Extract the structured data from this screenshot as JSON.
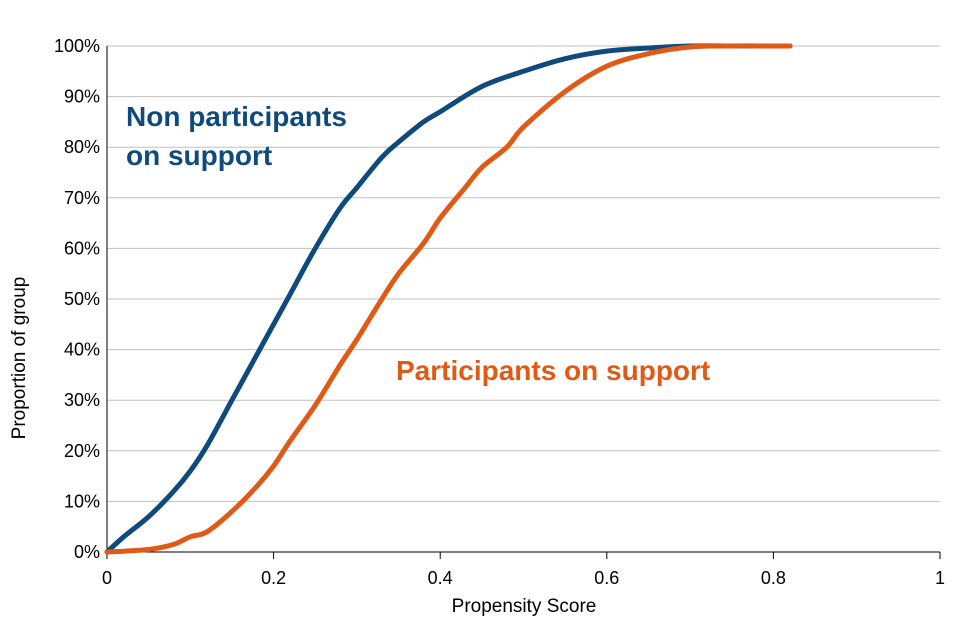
{
  "chart_data": {
    "type": "line",
    "title": "",
    "xlabel": "Propensity Score",
    "ylabel": "Proportion of group",
    "xlim": [
      0,
      1
    ],
    "ylim": [
      0,
      100
    ],
    "x_ticks": [
      0,
      0.2,
      0.4,
      0.6,
      0.8,
      1
    ],
    "x_tick_labels": [
      "0",
      "0.2",
      "0.4",
      "0.6",
      "0.8",
      "1"
    ],
    "y_ticks": [
      0,
      10,
      20,
      30,
      40,
      50,
      60,
      70,
      80,
      90,
      100
    ],
    "y_tick_labels": [
      "0%",
      "10%",
      "20%",
      "30%",
      "40%",
      "50%",
      "60%",
      "70%",
      "80%",
      "90%",
      "100%"
    ],
    "grid": "horizontal",
    "legend": "none",
    "series": [
      {
        "name": "Non participants on support",
        "label_lines": [
          "Non participants",
          "on support"
        ],
        "color": "#0e4a7c",
        "x": [
          0,
          0.02,
          0.05,
          0.08,
          0.1,
          0.12,
          0.15,
          0.18,
          0.2,
          0.22,
          0.25,
          0.28,
          0.3,
          0.33,
          0.35,
          0.38,
          0.4,
          0.45,
          0.5,
          0.55,
          0.6,
          0.65,
          0.7,
          0.75,
          0.8,
          0.82
        ],
        "values": [
          0,
          3,
          7,
          12,
          16,
          21,
          30,
          39,
          45,
          51,
          60,
          68,
          72,
          78,
          81,
          85,
          87,
          92,
          95,
          97.5,
          99,
          99.6,
          100,
          100,
          100,
          100
        ]
      },
      {
        "name": "Participants on support",
        "label_lines": [
          "Participants on support"
        ],
        "color": "#e05a16",
        "x": [
          0,
          0.05,
          0.08,
          0.1,
          0.12,
          0.15,
          0.18,
          0.2,
          0.22,
          0.25,
          0.28,
          0.3,
          0.33,
          0.35,
          0.38,
          0.4,
          0.43,
          0.45,
          0.48,
          0.5,
          0.55,
          0.6,
          0.65,
          0.7,
          0.75,
          0.8,
          0.82
        ],
        "values": [
          0,
          0.5,
          1.5,
          3,
          4,
          8,
          13,
          17,
          22,
          29,
          37,
          42,
          50,
          55,
          61,
          66,
          72,
          76,
          80,
          84,
          91,
          96,
          98.5,
          99.8,
          100,
          100,
          100
        ]
      }
    ]
  }
}
